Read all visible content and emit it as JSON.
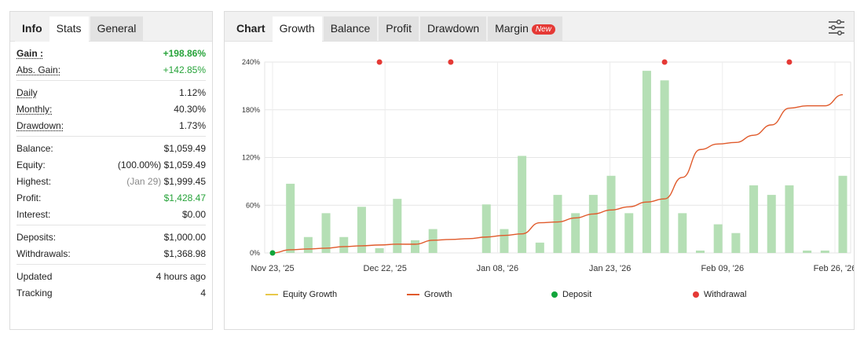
{
  "stats_tabs": [
    {
      "label": "Info"
    },
    {
      "label": "Stats"
    },
    {
      "label": "General"
    }
  ],
  "stats": {
    "gain_label": "Gain :",
    "gain_value": "+198.86%",
    "abs_gain_label": "Abs. Gain:",
    "abs_gain_value": "+142.85%",
    "daily_label": "Daily",
    "daily_value": "1.12%",
    "monthly_label": "Monthly:",
    "monthly_value": "40.30%",
    "drawdown_label": "Drawdown:",
    "drawdown_value": "1.73%",
    "balance_label": "Balance:",
    "balance_value": "$1,059.49",
    "equity_label": "Equity:",
    "equity_note": "(100.00%)",
    "equity_value": "$1,059.49",
    "highest_label": "Highest:",
    "highest_note": "(Jan 29)",
    "highest_value": "$1,999.45",
    "profit_label": "Profit:",
    "profit_value": "$1,428.47",
    "interest_label": "Interest:",
    "interest_value": "$0.00",
    "deposits_label": "Deposits:",
    "deposits_value": "$1,000.00",
    "withdrawals_label": "Withdrawals:",
    "withdrawals_value": "$1,368.98",
    "updated_label": "Updated",
    "updated_value": "4 hours ago",
    "tracking_label": "Tracking",
    "tracking_value": "4"
  },
  "chart_tabs": [
    {
      "label": "Chart"
    },
    {
      "label": "Growth"
    },
    {
      "label": "Balance"
    },
    {
      "label": "Profit"
    },
    {
      "label": "Drawdown"
    },
    {
      "label": "Margin",
      "badge": "New"
    }
  ],
  "settings_icon": "sliders-icon",
  "colors": {
    "bar": "#b5dfb5",
    "growth": "#e05a2b",
    "equity": "#e8c84a",
    "deposit": "#11a53b",
    "withdrawal": "#e53935",
    "positive": "#27a33a"
  },
  "chart_data": {
    "type": "bar+line",
    "title": "",
    "xlabel": "",
    "ylabel": "",
    "ylim": [
      0,
      240
    ],
    "yticks": [
      "0%",
      "60%",
      "120%",
      "180%",
      "240%"
    ],
    "x_tick_labels": [
      "Nov 23, '25",
      "Dec 22, '25",
      "Jan 08, '26",
      "Jan 23, '26",
      "Feb 09, '26",
      "Feb 26, '26"
    ],
    "grid": true,
    "legend_position": "bottom",
    "bars": [
      0,
      87,
      20,
      50,
      20,
      58,
      6,
      68,
      16,
      30,
      0,
      0,
      61,
      30,
      122,
      13,
      73,
      50,
      73,
      97,
      50,
      229,
      217,
      50,
      3,
      36,
      25,
      85,
      73,
      85,
      3,
      3,
      97
    ],
    "growth": [
      0,
      4,
      5,
      6,
      8,
      9,
      10,
      11,
      11,
      16,
      17,
      18,
      20,
      22,
      24,
      38,
      39,
      44,
      49,
      54,
      58,
      64,
      68,
      95,
      130,
      137,
      139,
      148,
      161,
      182,
      185,
      185,
      199
    ],
    "withdrawals_at_index": [
      6,
      10,
      22,
      29
    ],
    "deposits_at_index": [
      0
    ],
    "series": [
      {
        "name": "Equity Growth"
      },
      {
        "name": "Growth"
      },
      {
        "name": "Deposit"
      },
      {
        "name": "Withdrawal"
      }
    ]
  }
}
